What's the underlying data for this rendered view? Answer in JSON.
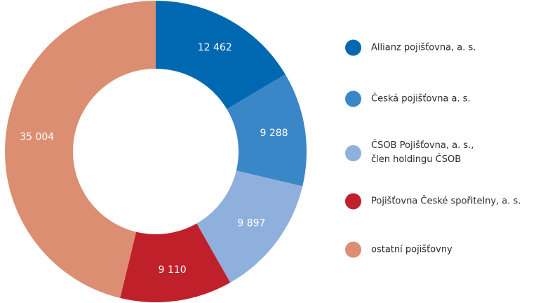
{
  "chart_data": {
    "type": "pie",
    "categories": [
      "Allianz pojišťovna, a. s.",
      "Česká pojišťovna a. s.",
      "ČSOB Pojišťovna, a. s.,\nčlen holdingu ČSOB",
      "Pojišťovna České spořitelny, a. s.",
      "ostatní pojišťovny"
    ],
    "values": [
      12462,
      9288,
      9897,
      9110,
      35004
    ],
    "value_labels": [
      "12 462",
      "9 288",
      "9 897",
      "9 110",
      "35 004"
    ],
    "colors": [
      "#0068b0",
      "#3a87c8",
      "#8fb0dc",
      "#c0202a",
      "#dc8e72"
    ],
    "donut": true,
    "legend": "right"
  }
}
